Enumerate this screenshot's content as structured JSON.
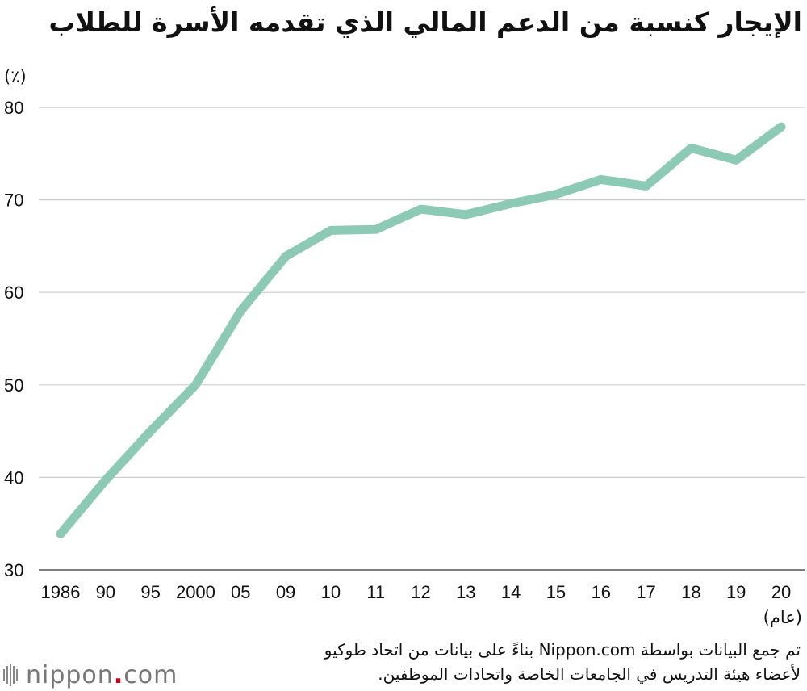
{
  "chart_data": {
    "type": "line",
    "title": "الإيجار كنسبة من الدعم المالي الذي تقدمه الأسرة للطلاب",
    "y_unit_label": "(٪)",
    "x_unit_label": "(عام)",
    "categories": [
      "1986",
      "90",
      "95",
      "2000",
      "05",
      "09",
      "10",
      "11",
      "12",
      "13",
      "14",
      "15",
      "16",
      "17",
      "18",
      "19",
      "20"
    ],
    "series": [
      {
        "values": [
          33.9,
          39.7,
          45.0,
          50.0,
          58.0,
          63.9,
          66.7,
          66.8,
          69.0,
          68.4,
          69.6,
          70.6,
          72.2,
          71.5,
          75.6,
          74.3,
          77.9
        ]
      }
    ],
    "ylim": [
      30,
      80
    ],
    "yticks": [
      30,
      40,
      50,
      60,
      70,
      80
    ],
    "grid": true,
    "line_color": "#8dcab6",
    "grid_color": "#cccccc"
  },
  "source_lines": [
    "تم جمع البيانات بواسطة Nippon.com بناءً على بيانات من اتحاد طوكيو",
    "لأعضاء هيئة التدريس في الجامعات الخاصة واتحادات الموظفين."
  ],
  "logo": {
    "word": "nippon",
    "dot": ".",
    "suffix": "com"
  }
}
